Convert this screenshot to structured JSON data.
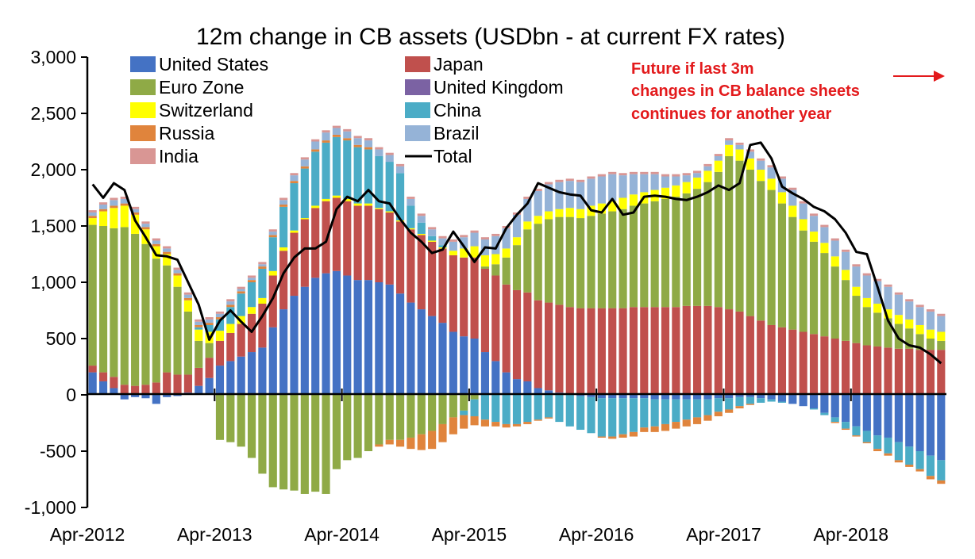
{
  "chart_data": {
    "type": "bar",
    "title": "12m change in CB assets (USDbn - at current FX rates)",
    "xlabel": "",
    "ylabel": "",
    "ylim": [
      -1000,
      3000
    ],
    "y_ticks": [
      "3,000",
      "2,500",
      "2,000",
      "1,500",
      "1,000",
      "500",
      "0",
      "-500",
      "-1,000"
    ],
    "x_ticks": [
      "Apr-2012",
      "Apr-2013",
      "Apr-2014",
      "Apr-2015",
      "Apr-2016",
      "Apr-2017",
      "Apr-2018"
    ],
    "grid": false,
    "legend_position": "top-left",
    "stacked": true,
    "categories": [
      "Apr-2012",
      "May-2012",
      "Jun-2012",
      "Jul-2012",
      "Aug-2012",
      "Sep-2012",
      "Oct-2012",
      "Nov-2012",
      "Dec-2012",
      "Jan-2013",
      "Feb-2013",
      "Mar-2013",
      "Apr-2013",
      "May-2013",
      "Jun-2013",
      "Jul-2013",
      "Aug-2013",
      "Sep-2013",
      "Oct-2013",
      "Nov-2013",
      "Dec-2013",
      "Jan-2014",
      "Feb-2014",
      "Mar-2014",
      "Apr-2014",
      "May-2014",
      "Jun-2014",
      "Jul-2014",
      "Aug-2014",
      "Sep-2014",
      "Oct-2014",
      "Nov-2014",
      "Dec-2014",
      "Jan-2015",
      "Feb-2015",
      "Mar-2015",
      "Apr-2015",
      "May-2015",
      "Jun-2015",
      "Jul-2015",
      "Aug-2015",
      "Sep-2015",
      "Oct-2015",
      "Nov-2015",
      "Dec-2015",
      "Jan-2016",
      "Feb-2016",
      "Mar-2016",
      "Apr-2016",
      "May-2016",
      "Jun-2016",
      "Jul-2016",
      "Aug-2016",
      "Sep-2016",
      "Oct-2016",
      "Nov-2016",
      "Dec-2016",
      "Jan-2017",
      "Feb-2017",
      "Mar-2017",
      "Apr-2017",
      "May-2017",
      "Jun-2017",
      "Jul-2017",
      "Aug-2017",
      "Sep-2017",
      "Oct-2017",
      "Nov-2017",
      "Dec-2017",
      "Jan-2018",
      "Feb-2018",
      "Mar-2018",
      "Apr-2018",
      "May-2018",
      "Jun-2018",
      "Jul-2018",
      "Aug-2018",
      "Sep-2018",
      "Oct-2018",
      "Nov-2018",
      "Dec-2018"
    ],
    "series": [
      {
        "name": "United States",
        "color": "#4472c4",
        "values": [
          200,
          120,
          60,
          -40,
          -20,
          -30,
          -80,
          -20,
          -10,
          20,
          80,
          150,
          260,
          300,
          340,
          380,
          420,
          600,
          760,
          880,
          960,
          1040,
          1080,
          1100,
          1060,
          1020,
          1020,
          1000,
          980,
          900,
          820,
          760,
          700,
          640,
          560,
          520,
          500,
          380,
          300,
          200,
          140,
          120,
          60,
          40,
          20,
          0,
          -10,
          -20,
          -30,
          -30,
          -30,
          -30,
          -30,
          -40,
          -40,
          -40,
          -40,
          -40,
          -40,
          -30,
          -30,
          -20,
          -20,
          -30,
          -40,
          -60,
          -80,
          -100,
          -120,
          -160,
          -200,
          -240,
          -280,
          -320,
          -360,
          -380,
          -420,
          -460,
          -500,
          -540,
          -580
        ]
      },
      {
        "name": "Japan",
        "color": "#c0504d",
        "values": [
          60,
          80,
          100,
          90,
          80,
          90,
          110,
          200,
          180,
          160,
          160,
          180,
          220,
          250,
          290,
          340,
          390,
          460,
          520,
          560,
          600,
          620,
          640,
          650,
          660,
          660,
          660,
          650,
          640,
          640,
          650,
          660,
          660,
          660,
          680,
          700,
          720,
          740,
          760,
          780,
          790,
          790,
          780,
          780,
          780,
          780,
          770,
          770,
          770,
          770,
          770,
          780,
          780,
          780,
          780,
          780,
          790,
          790,
          790,
          780,
          760,
          740,
          700,
          660,
          620,
          600,
          580,
          560,
          540,
          520,
          500,
          480,
          460,
          440,
          430,
          420,
          410,
          410,
          400,
          400,
          400
        ]
      },
      {
        "name": "Euro Zone",
        "color": "#8faa46",
        "values": [
          1250,
          1300,
          1320,
          1400,
          1350,
          1250,
          1100,
          950,
          780,
          560,
          240,
          130,
          -400,
          -420,
          -460,
          -560,
          -700,
          -820,
          -840,
          -850,
          -880,
          -860,
          -880,
          -660,
          -580,
          -560,
          -500,
          -440,
          -400,
          -400,
          -380,
          -350,
          -320,
          -260,
          -200,
          -140,
          -40,
          20,
          100,
          240,
          400,
          560,
          680,
          740,
          780,
          800,
          800,
          820,
          840,
          860,
          880,
          900,
          920,
          940,
          960,
          980,
          1000,
          1040,
          1100,
          1200,
          1360,
          1340,
          1300,
          1240,
          1200,
          1100,
          1000,
          900,
          820,
          740,
          640,
          540,
          420,
          340,
          300,
          260,
          220,
          180,
          140,
          100,
          80
        ]
      },
      {
        "name": "United Kingdom",
        "color": "#7b62a3",
        "values": [
          0,
          0,
          0,
          0,
          0,
          0,
          0,
          0,
          0,
          0,
          0,
          0,
          0,
          0,
          0,
          0,
          0,
          0,
          0,
          0,
          0,
          0,
          0,
          0,
          0,
          0,
          0,
          0,
          0,
          0,
          0,
          0,
          0,
          0,
          0,
          0,
          0,
          0,
          0,
          0,
          0,
          0,
          0,
          0,
          0,
          0,
          0,
          0,
          0,
          0,
          0,
          0,
          0,
          0,
          0,
          0,
          0,
          0,
          0,
          0,
          0,
          0,
          0,
          0,
          0,
          0,
          0,
          0,
          0,
          0,
          0,
          0,
          0,
          0,
          0,
          0,
          0,
          0,
          0,
          0,
          0
        ]
      },
      {
        "name": "Switzerland",
        "color": "#ffff00",
        "values": [
          60,
          130,
          180,
          190,
          170,
          130,
          110,
          100,
          100,
          100,
          100,
          100,
          90,
          80,
          70,
          60,
          50,
          40,
          30,
          20,
          10,
          20,
          20,
          20,
          20,
          20,
          20,
          10,
          10,
          10,
          10,
          10,
          10,
          10,
          40,
          80,
          100,
          100,
          90,
          80,
          70,
          70,
          70,
          70,
          70,
          80,
          80,
          90,
          90,
          90,
          100,
          100,
          100,
          100,
          100,
          100,
          100,
          100,
          100,
          100,
          100,
          100,
          100,
          100,
          100,
          100,
          100,
          100,
          90,
          90,
          90,
          90,
          80,
          80,
          80,
          80,
          80,
          80,
          80,
          80,
          80
        ]
      },
      {
        "name": "China",
        "color": "#4bacc6",
        "values": [
          0,
          0,
          0,
          0,
          0,
          0,
          0,
          0,
          0,
          0,
          20,
          60,
          100,
          150,
          200,
          220,
          260,
          300,
          360,
          420,
          440,
          480,
          500,
          520,
          520,
          500,
          480,
          460,
          440,
          420,
          200,
          100,
          40,
          20,
          0,
          -40,
          -150,
          -220,
          -240,
          -260,
          -260,
          -240,
          -220,
          -200,
          -240,
          -280,
          -300,
          -320,
          -340,
          -340,
          -320,
          -300,
          -260,
          -240,
          -220,
          -200,
          -180,
          -160,
          -140,
          -120,
          -100,
          -80,
          -60,
          -40,
          -20,
          -10,
          0,
          0,
          -10,
          -20,
          -40,
          -60,
          -80,
          -100,
          -120,
          -140,
          -160,
          -160,
          -160,
          -180,
          -180
        ]
      },
      {
        "name": "Russia",
        "color": "#e0843c",
        "values": [
          20,
          20,
          20,
          20,
          20,
          20,
          20,
          20,
          20,
          20,
          20,
          20,
          20,
          20,
          20,
          20,
          20,
          20,
          20,
          20,
          20,
          20,
          20,
          20,
          20,
          20,
          20,
          -20,
          -40,
          -60,
          -100,
          -140,
          -160,
          -160,
          -150,
          -120,
          -80,
          -60,
          -40,
          -30,
          -20,
          -20,
          -10,
          -10,
          0,
          0,
          0,
          0,
          -10,
          -20,
          -30,
          -40,
          -40,
          -50,
          -60,
          -60,
          -60,
          -60,
          -50,
          -40,
          -30,
          -20,
          -10,
          0,
          0,
          0,
          0,
          0,
          0,
          0,
          -10,
          -10,
          -10,
          -10,
          -20,
          -20,
          -20,
          -20,
          -20,
          -30,
          -30
        ]
      },
      {
        "name": "Brazil",
        "color": "#95b3d7",
        "values": [
          30,
          40,
          50,
          40,
          30,
          30,
          30,
          30,
          30,
          30,
          30,
          30,
          30,
          30,
          20,
          20,
          20,
          30,
          40,
          50,
          60,
          70,
          70,
          60,
          60,
          60,
          60,
          60,
          60,
          60,
          60,
          60,
          60,
          60,
          80,
          100,
          120,
          140,
          160,
          180,
          200,
          200,
          220,
          240,
          240,
          240,
          240,
          240,
          240,
          240,
          200,
          180,
          160,
          140,
          100,
          80,
          60,
          40,
          40,
          40,
          40,
          40,
          60,
          80,
          100,
          120,
          140,
          140,
          140,
          140,
          140,
          160,
          180,
          200,
          200,
          200,
          180,
          160,
          160,
          160,
          140
        ]
      },
      {
        "name": "India",
        "color": "#d99694",
        "values": [
          20,
          20,
          20,
          20,
          20,
          20,
          20,
          20,
          20,
          20,
          20,
          20,
          20,
          20,
          20,
          20,
          20,
          20,
          20,
          20,
          20,
          20,
          20,
          20,
          20,
          20,
          20,
          20,
          20,
          20,
          20,
          20,
          20,
          20,
          20,
          20,
          20,
          20,
          20,
          20,
          20,
          20,
          20,
          20,
          20,
          20,
          20,
          20,
          20,
          20,
          20,
          20,
          20,
          20,
          20,
          20,
          20,
          20,
          20,
          20,
          20,
          20,
          20,
          20,
          20,
          20,
          20,
          20,
          20,
          20,
          20,
          20,
          20,
          20,
          20,
          20,
          20,
          20,
          20,
          20,
          20
        ]
      }
    ],
    "total": {
      "name": "Total",
      "color": "#000000",
      "values": [
        1870,
        1750,
        1880,
        1820,
        1550,
        1400,
        1240,
        1230,
        1200,
        1000,
        800,
        490,
        660,
        750,
        650,
        560,
        700,
        860,
        1080,
        1220,
        1300,
        1300,
        1360,
        1650,
        1760,
        1720,
        1820,
        1720,
        1700,
        1560,
        1440,
        1360,
        1260,
        1290,
        1450,
        1320,
        1180,
        1310,
        1300,
        1480,
        1600,
        1700,
        1880,
        1840,
        1800,
        1780,
        1770,
        1640,
        1620,
        1740,
        1600,
        1620,
        1760,
        1770,
        1760,
        1740,
        1730,
        1760,
        1800,
        1860,
        1820,
        1880,
        2220,
        2240,
        2100,
        1850,
        1790,
        1740,
        1670,
        1630,
        1560,
        1440,
        1270,
        1250,
        960,
        660,
        500,
        440,
        420,
        360,
        280
      ]
    },
    "annotation": [
      "Future if last 3m",
      "changes in CB balance sheets",
      " continues for another year"
    ]
  }
}
